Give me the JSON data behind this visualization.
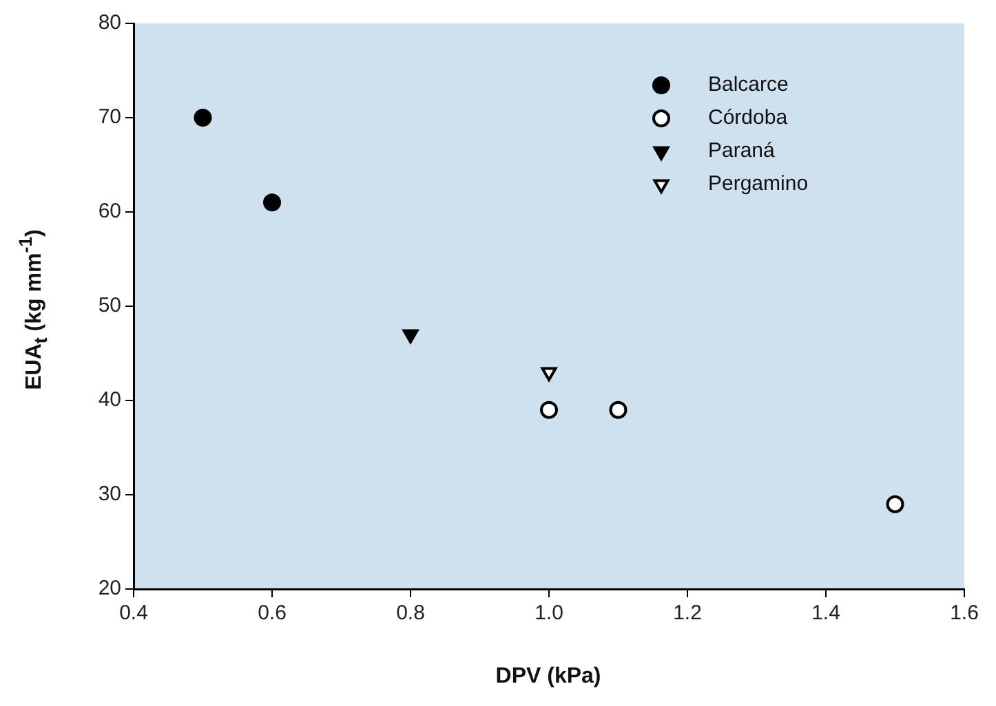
{
  "chart_data": {
    "type": "scatter",
    "xlabel": "DPV (kPa)",
    "ylabel": "EUA$_{t}$ (kg mm$^{-1}$)",
    "xlim": [
      0.4,
      1.6
    ],
    "xticks": [
      {
        "value": 0.4,
        "label": "0.4"
      },
      {
        "value": 0.6,
        "label": "0.6"
      },
      {
        "value": 0.8,
        "label": "0.8"
      },
      {
        "value": 1.0,
        "label": "1.0"
      },
      {
        "value": 1.2,
        "label": "1.2"
      },
      {
        "value": 1.4,
        "label": "1.4"
      },
      {
        "value": 1.6,
        "label": "1.6"
      }
    ],
    "ylim": [
      20,
      80
    ],
    "yticks": [
      20,
      30,
      40,
      50,
      60,
      70,
      80
    ],
    "grid": false,
    "legend": "top right",
    "series": [
      {
        "name": "Balcarce",
        "color": "#000000",
        "marker": "circle",
        "x": [
          0.5,
          0.6
        ],
        "values": [
          70,
          61
        ]
      },
      {
        "name": "Córdoba",
        "color": "#ffffff",
        "marker": "circle",
        "x": [
          1.0,
          1.1,
          1.5
        ],
        "values": [
          39,
          39,
          29
        ]
      },
      {
        "name": "Paraná",
        "color": "#000000",
        "marker": "triangle",
        "x": [
          0.8
        ],
        "values": [
          47
        ]
      },
      {
        "name": "Pergamino",
        "color": "#ffffff",
        "marker": "triangle",
        "x": [
          1.0
        ],
        "values": [
          43
        ]
      }
    ]
  }
}
